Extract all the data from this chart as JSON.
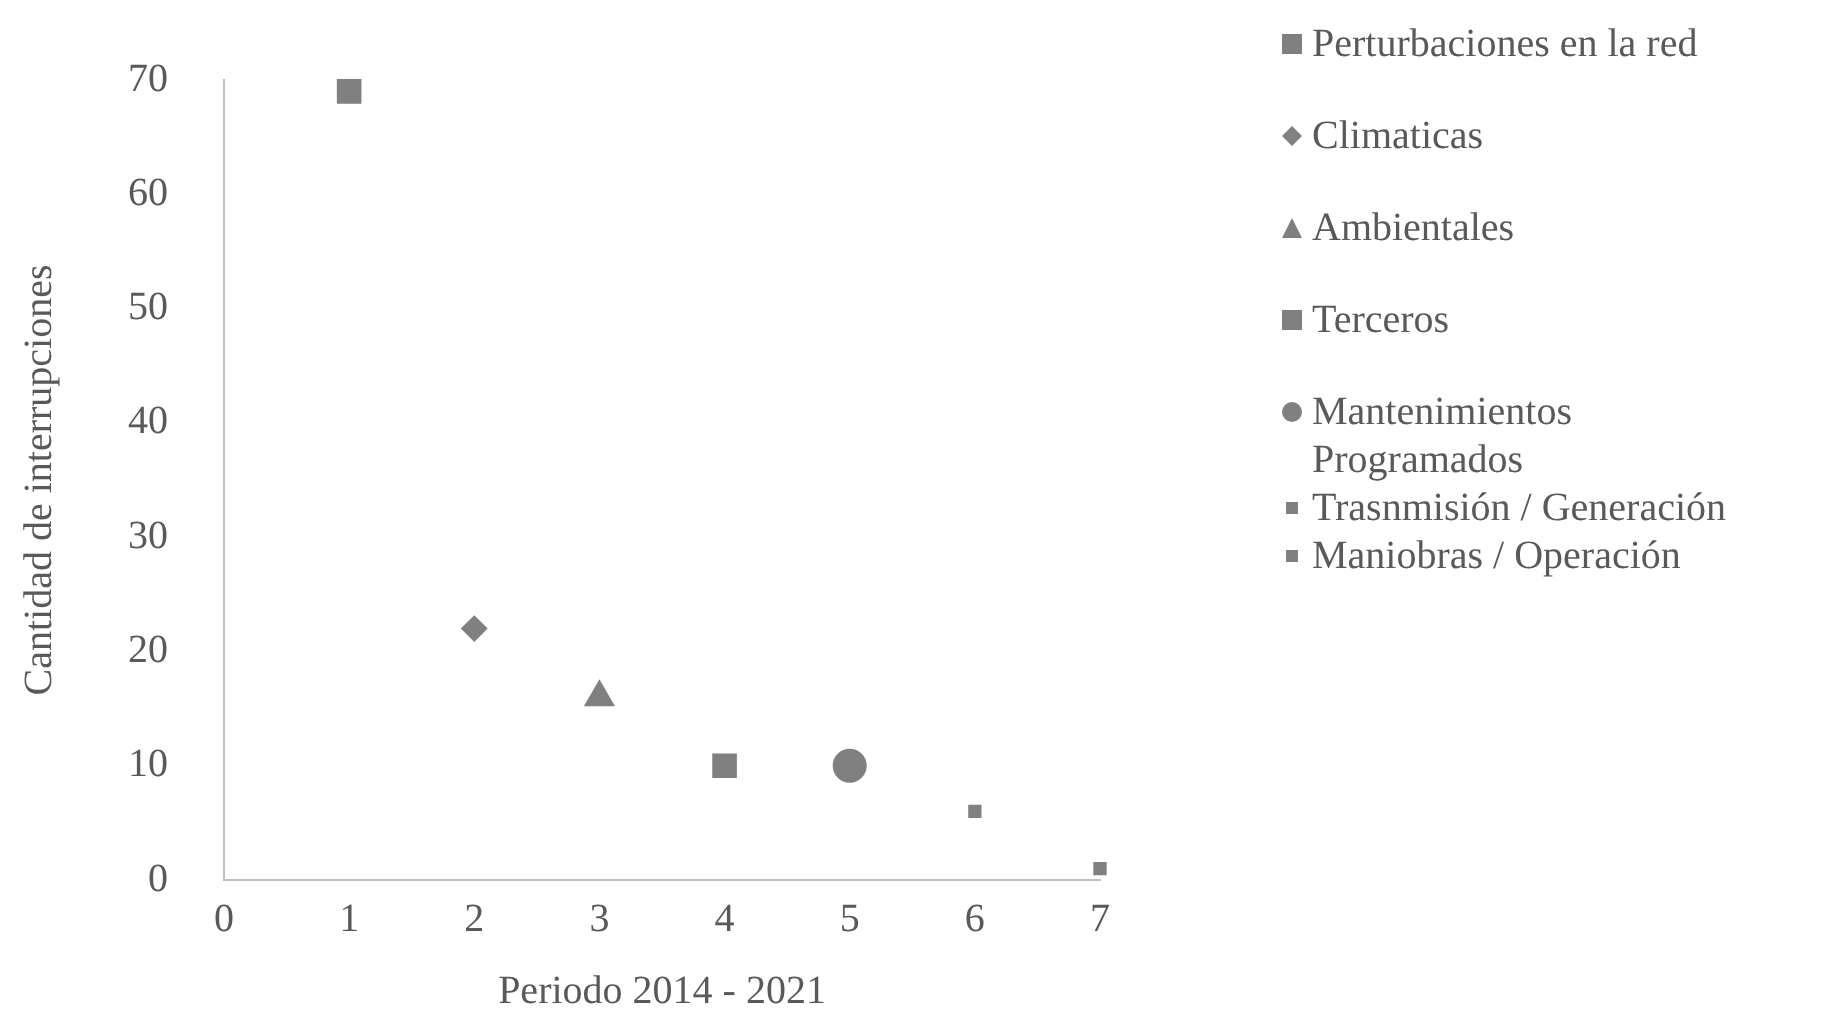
{
  "chart_data": {
    "type": "scatter",
    "xlabel": "Periodo 2014 - 2021",
    "ylabel": "Cantidad de interrupciones",
    "xlim": [
      0,
      7
    ],
    "xticks": [
      0,
      1,
      2,
      3,
      4,
      5,
      6,
      7
    ],
    "ylim": [
      0,
      70
    ],
    "yticks": [
      0,
      10,
      20,
      30,
      40,
      50,
      60,
      70
    ],
    "grid": false,
    "legend": "right",
    "series": [
      {
        "name": "Perturbaciones en la red",
        "color": "#808080",
        "marker": "square",
        "x": [
          1
        ],
        "values": [
          69
        ]
      },
      {
        "name": "Climaticas",
        "color": "#808080",
        "marker": "diamond",
        "x": [
          2
        ],
        "values": [
          22
        ]
      },
      {
        "name": "Ambientales",
        "color": "#808080",
        "marker": "triangle",
        "x": [
          3
        ],
        "values": [
          16
        ]
      },
      {
        "name": "Terceros",
        "color": "#808080",
        "marker": "square",
        "x": [
          4
        ],
        "values": [
          10
        ]
      },
      {
        "name": "Mantenimientos Programados",
        "color": "#808080",
        "marker": "circle",
        "x": [
          5
        ],
        "values": [
          10
        ]
      },
      {
        "name": "Trasnmisión / Generación",
        "color": "#808080",
        "marker": "square",
        "x": [
          6
        ],
        "values": [
          6
        ]
      },
      {
        "name": "Maniobras / Operación",
        "color": "#808080",
        "marker": "square",
        "x": [
          7
        ],
        "values": [
          1
        ]
      }
    ]
  }
}
